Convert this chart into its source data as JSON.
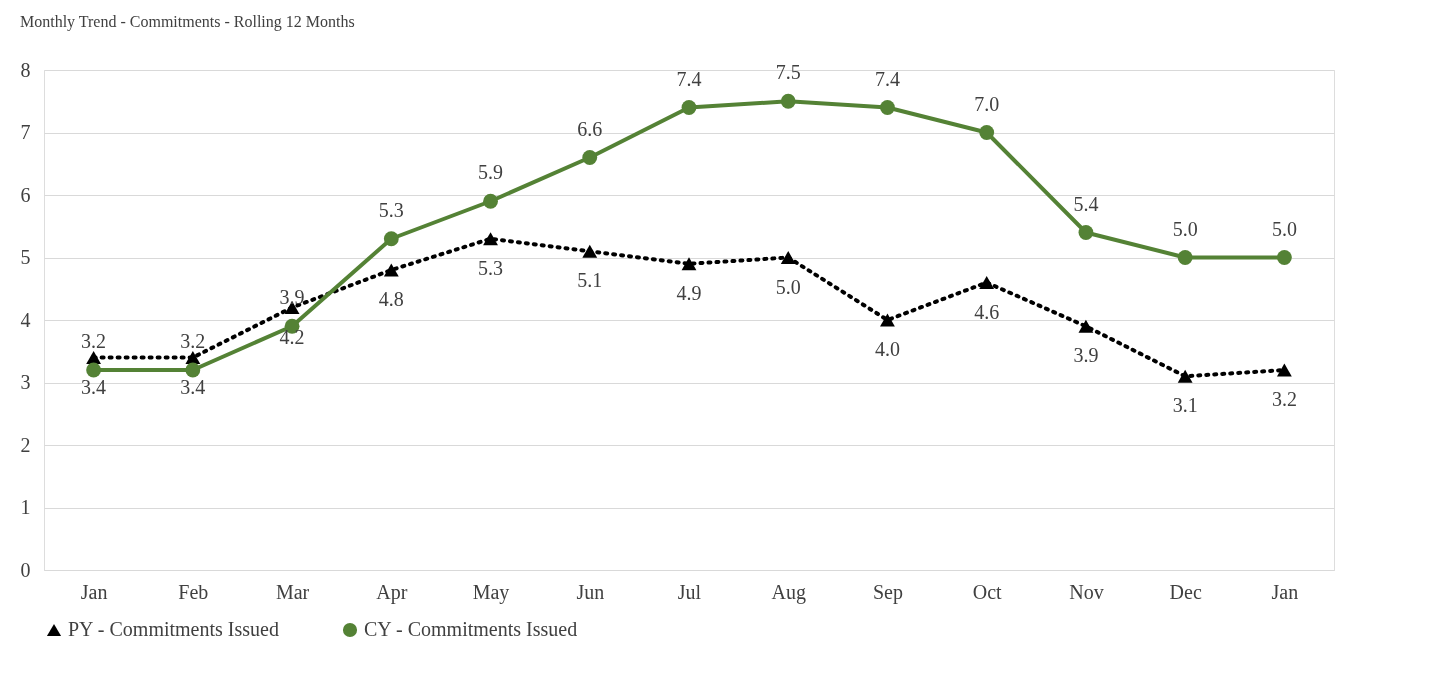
{
  "chart_data": {
    "type": "line",
    "title": "Monthly Trend - Commitments - Rolling 12 Months",
    "categories": [
      "Jan",
      "Feb",
      "Mar",
      "Apr",
      "May",
      "Jun",
      "Jul",
      "Aug",
      "Sep",
      "Oct",
      "Nov",
      "Dec",
      "Jan"
    ],
    "series": [
      {
        "name": "PY - Commitments Issued",
        "color": "#000000",
        "marker": "triangle",
        "line_style": "dotted",
        "values": [
          3.4,
          3.4,
          4.2,
          4.8,
          5.3,
          5.1,
          4.9,
          5.0,
          4.0,
          4.6,
          3.9,
          3.1,
          3.2
        ],
        "value_labels": [
          "3.4",
          "3.4",
          "4.2",
          "4.8",
          "5.3",
          "5.1",
          "4.9",
          "5.0",
          "4.0",
          "4.6",
          "3.9",
          "3.1",
          "3.2"
        ]
      },
      {
        "name": "CY - Commitments Issued",
        "color": "#548235",
        "marker": "circle",
        "line_style": "solid",
        "values": [
          3.2,
          3.2,
          3.9,
          5.3,
          5.9,
          6.6,
          7.4,
          7.5,
          7.4,
          7.0,
          5.4,
          5.0,
          5.0
        ],
        "value_labels": [
          "3.2",
          "3.2",
          "3.9",
          "5.3",
          "5.9",
          "6.6",
          "7.4",
          "7.5",
          "7.4",
          "7.0",
          "5.4",
          "5.0",
          "5.0"
        ]
      }
    ],
    "ylim": [
      0,
      8
    ],
    "yticks": [
      0,
      1,
      2,
      3,
      4,
      5,
      6,
      7,
      8
    ],
    "grid": "y",
    "legend": "bottom"
  }
}
